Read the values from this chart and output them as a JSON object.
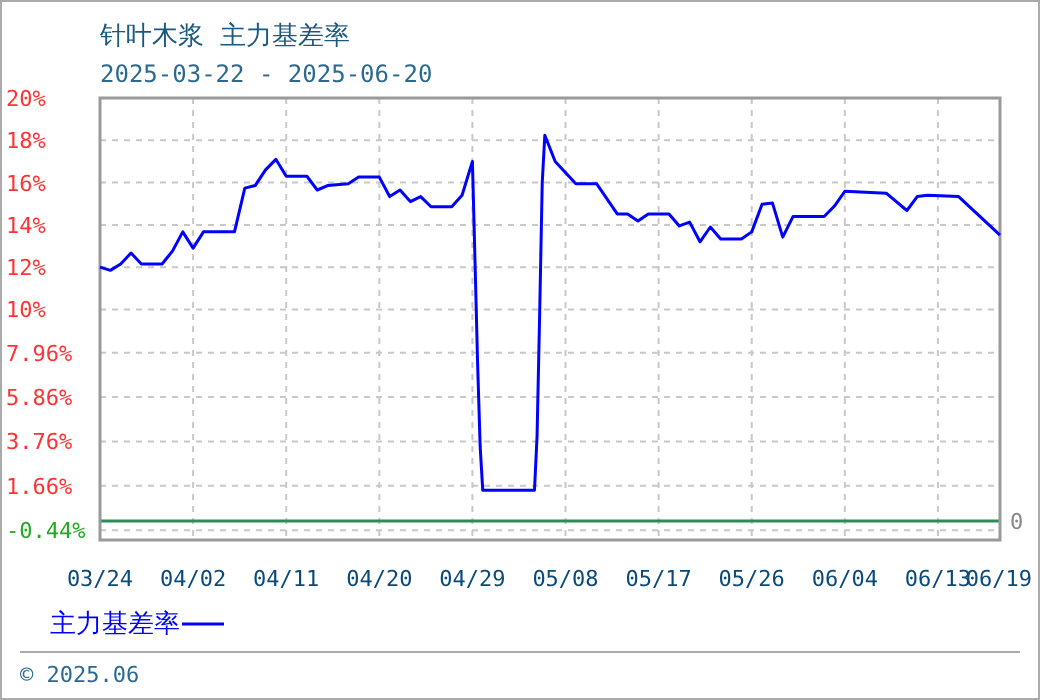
{
  "chart_data": {
    "type": "line",
    "title": "针叶木浆  主力基差率",
    "subtitle": "2025-03-22 - 2025-06-20",
    "annotations": [
      "© 2025.06"
    ],
    "x": [
      "2025-03-24",
      "2025-03-25",
      "2025-03-26",
      "2025-03-27",
      "2025-03-28",
      "2025-03-30",
      "2025-03-31",
      "2025-04-01",
      "2025-04-02",
      "2025-04-03",
      "2025-04-06",
      "2025-04-07",
      "2025-04-08",
      "2025-04-09",
      "2025-04-10",
      "2025-04-11",
      "2025-04-13",
      "2025-04-14",
      "2025-04-15",
      "2025-04-17",
      "2025-04-18",
      "2025-04-20",
      "2025-04-21",
      "2025-04-22",
      "2025-04-23",
      "2025-04-24",
      "2025-04-25",
      "2025-04-27",
      "2025-04-28",
      "2025-04-29",
      "2025-04-29T06:00",
      "2025-04-29T12:00",
      "2025-04-29T18:00",
      "2025-04-30",
      "2025-05-05",
      "2025-05-05T06:00",
      "2025-05-05T12:00",
      "2025-05-05T18:00",
      "2025-05-06",
      "2025-05-07",
      "2025-05-09",
      "2025-05-11",
      "2025-05-13",
      "2025-05-14",
      "2025-05-15",
      "2025-05-16",
      "2025-05-18",
      "2025-05-19",
      "2025-05-20",
      "2025-05-21",
      "2025-05-22",
      "2025-05-23",
      "2025-05-25",
      "2025-05-26",
      "2025-05-27",
      "2025-05-28",
      "2025-05-29",
      "2025-05-30",
      "2025-06-02",
      "2025-06-03",
      "2025-06-04",
      "2025-06-08",
      "2025-06-10",
      "2025-06-11",
      "2025-06-12",
      "2025-06-15",
      "2025-06-19"
    ],
    "series": [
      {
        "name": "主力基差率",
        "color": "#0000ff",
        "values": [
          12.0,
          11.85,
          12.15,
          12.67,
          12.15,
          12.15,
          12.76,
          13.67,
          12.9,
          13.67,
          13.67,
          15.74,
          15.86,
          16.6,
          17.1,
          16.3,
          16.3,
          15.65,
          15.86,
          15.95,
          16.26,
          16.26,
          15.34,
          15.65,
          15.1,
          15.34,
          14.86,
          14.86,
          15.4,
          17.0,
          12.3,
          7.5,
          3.5,
          1.45,
          1.45,
          4.0,
          9.8,
          16.0,
          18.24,
          17.0,
          15.95,
          15.95,
          14.52,
          14.52,
          14.18,
          14.52,
          14.52,
          13.95,
          14.13,
          13.2,
          13.9,
          13.33,
          13.33,
          13.67,
          14.98,
          15.04,
          13.42,
          14.4,
          14.4,
          14.89,
          15.59,
          15.5,
          14.68,
          15.34,
          15.4,
          15.34,
          13.52
        ]
      }
    ],
    "xlim": [
      "2025-03-24",
      "2025-06-19"
    ],
    "xticks": [
      {
        "value": "2025-03-24",
        "label": "03/24"
      },
      {
        "value": "2025-04-02",
        "label": "04/02"
      },
      {
        "value": "2025-04-11",
        "label": "04/11"
      },
      {
        "value": "2025-04-20",
        "label": "04/20"
      },
      {
        "value": "2025-04-29",
        "label": "04/29"
      },
      {
        "value": "2025-05-08",
        "label": "05/08"
      },
      {
        "value": "2025-05-17",
        "label": "05/17"
      },
      {
        "value": "2025-05-26",
        "label": "05/26"
      },
      {
        "value": "2025-06-04",
        "label": "06/04"
      },
      {
        "value": "2025-06-13",
        "label": "06/13"
      },
      {
        "value": "2025-06-19",
        "label": "06/19"
      }
    ],
    "ylim": [
      -0.9,
      20
    ],
    "yticks": [
      {
        "value": -0.44,
        "label": "-0.44%"
      },
      {
        "value": 1.66,
        "label": "1.66%"
      },
      {
        "value": 3.76,
        "label": "3.76%"
      },
      {
        "value": 5.86,
        "label": "5.86%"
      },
      {
        "value": 7.96,
        "label": "7.96%"
      },
      {
        "value": 10,
        "label": "10%"
      },
      {
        "value": 12,
        "label": "12%"
      },
      {
        "value": 14,
        "label": "14%"
      },
      {
        "value": 16,
        "label": "16%"
      },
      {
        "value": 18,
        "label": "18%"
      },
      {
        "value": 20,
        "label": "20%"
      }
    ],
    "ref_lines": [
      {
        "axis": "y",
        "value": 0,
        "label": "0",
        "color": "#2e8b57"
      }
    ],
    "grid": true,
    "legend": "bottom left"
  }
}
